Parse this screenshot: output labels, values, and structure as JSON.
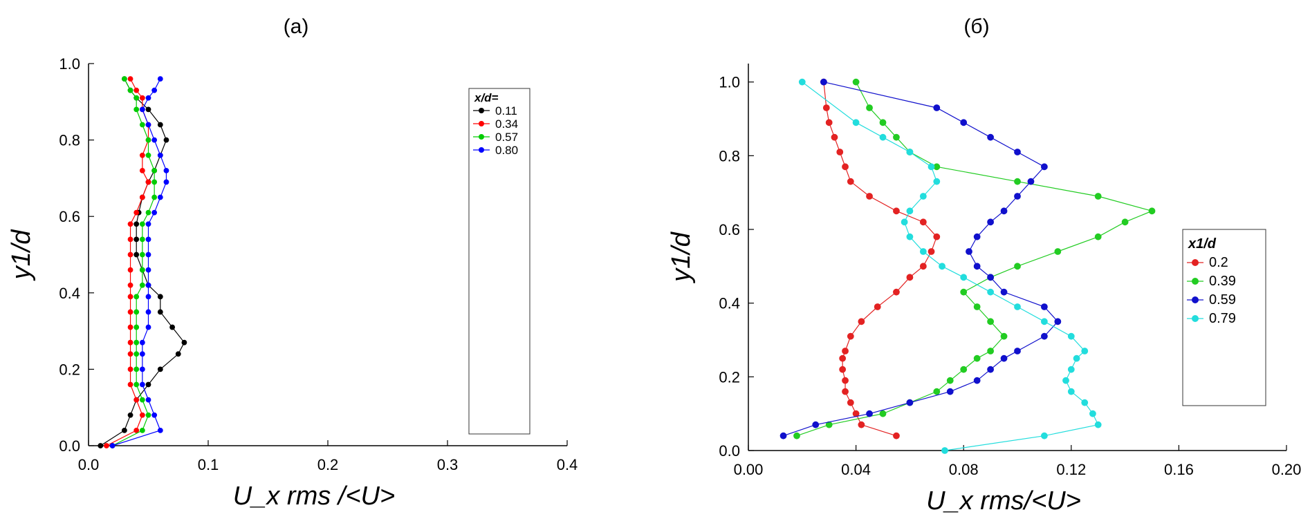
{
  "chart_data": [
    {
      "id": "a",
      "type": "line",
      "title": "(a)",
      "xlabel": "U_x rms /<U>",
      "ylabel": "y1/d",
      "xlim": [
        0.0,
        0.4
      ],
      "ylim": [
        0.0,
        1.0
      ],
      "xticks": [
        "0.0",
        "0.1",
        "0.2",
        "0.3",
        "0.4"
      ],
      "yticks": [
        "0.0",
        "0.2",
        "0.4",
        "0.6",
        "0.8",
        "1.0"
      ],
      "grid": false,
      "legend_title": "x/d=",
      "legend_position": "right",
      "series": [
        {
          "name": "0.11",
          "color": "#000000",
          "marker": "circle",
          "x": [
            0.01,
            0.03,
            0.035,
            0.04,
            0.05,
            0.06,
            0.075,
            0.08,
            0.07,
            0.06,
            0.06,
            0.05,
            0.045,
            0.04,
            0.04,
            0.04,
            0.042,
            0.045,
            0.05,
            0.055,
            0.06,
            0.065,
            0.06,
            0.05,
            0.04,
            0.035,
            0.03
          ],
          "y": [
            0.0,
            0.04,
            0.08,
            0.12,
            0.16,
            0.2,
            0.24,
            0.27,
            0.31,
            0.35,
            0.39,
            0.42,
            0.46,
            0.5,
            0.54,
            0.58,
            0.61,
            0.65,
            0.69,
            0.72,
            0.76,
            0.8,
            0.84,
            0.88,
            0.91,
            0.93,
            0.96
          ]
        },
        {
          "name": "0.34",
          "color": "#ff0000",
          "marker": "circle",
          "x": [
            0.015,
            0.04,
            0.045,
            0.04,
            0.035,
            0.035,
            0.035,
            0.035,
            0.035,
            0.035,
            0.035,
            0.035,
            0.035,
            0.035,
            0.035,
            0.035,
            0.04,
            0.045,
            0.05,
            0.045,
            0.045,
            0.05,
            0.05,
            0.045,
            0.045,
            0.04,
            0.035
          ],
          "y": [
            0.0,
            0.04,
            0.08,
            0.12,
            0.16,
            0.2,
            0.24,
            0.27,
            0.31,
            0.35,
            0.39,
            0.42,
            0.46,
            0.5,
            0.54,
            0.58,
            0.61,
            0.65,
            0.69,
            0.72,
            0.76,
            0.8,
            0.84,
            0.88,
            0.91,
            0.93,
            0.96
          ]
        },
        {
          "name": "0.57",
          "color": "#00cc00",
          "marker": "circle",
          "x": [
            0.02,
            0.045,
            0.05,
            0.045,
            0.04,
            0.04,
            0.04,
            0.04,
            0.04,
            0.04,
            0.04,
            0.045,
            0.045,
            0.045,
            0.045,
            0.045,
            0.05,
            0.055,
            0.055,
            0.055,
            0.05,
            0.05,
            0.045,
            0.04,
            0.04,
            0.035,
            0.03
          ],
          "y": [
            0.0,
            0.04,
            0.08,
            0.12,
            0.16,
            0.2,
            0.24,
            0.27,
            0.31,
            0.35,
            0.39,
            0.42,
            0.46,
            0.5,
            0.54,
            0.58,
            0.61,
            0.65,
            0.69,
            0.72,
            0.76,
            0.8,
            0.84,
            0.88,
            0.91,
            0.93,
            0.96
          ]
        },
        {
          "name": "0.80",
          "color": "#0000ff",
          "marker": "circle",
          "x": [
            0.02,
            0.06,
            0.055,
            0.05,
            0.045,
            0.045,
            0.045,
            0.045,
            0.05,
            0.05,
            0.05,
            0.05,
            0.05,
            0.05,
            0.05,
            0.05,
            0.055,
            0.06,
            0.065,
            0.065,
            0.06,
            0.055,
            0.05,
            0.045,
            0.05,
            0.055,
            0.06
          ],
          "y": [
            0.0,
            0.04,
            0.08,
            0.12,
            0.16,
            0.2,
            0.24,
            0.27,
            0.31,
            0.35,
            0.39,
            0.42,
            0.46,
            0.5,
            0.54,
            0.58,
            0.61,
            0.65,
            0.69,
            0.72,
            0.76,
            0.8,
            0.84,
            0.88,
            0.91,
            0.93,
            0.96
          ]
        }
      ]
    },
    {
      "id": "b",
      "type": "line",
      "title": "(б)",
      "xlabel": "U_x rms/<U>",
      "ylabel": "y1/d",
      "xlim": [
        0.0,
        0.2
      ],
      "ylim": [
        0.0,
        1.05
      ],
      "xticks": [
        "0.00",
        "0.04",
        "0.08",
        "0.12",
        "0.16",
        "0.20"
      ],
      "yticks": [
        "0.0",
        "0.2",
        "0.4",
        "0.6",
        "0.8",
        "1.0"
      ],
      "grid": false,
      "legend_title": "x1/d",
      "legend_position": "right",
      "series": [
        {
          "name": "0.2",
          "color": "#e32222",
          "marker": "circle",
          "x": [
            0.055,
            0.042,
            0.04,
            0.038,
            0.036,
            0.036,
            0.035,
            0.035,
            0.036,
            0.038,
            0.042,
            0.048,
            0.055,
            0.06,
            0.065,
            0.068,
            0.07,
            0.065,
            0.055,
            0.045,
            0.038,
            0.036,
            0.034,
            0.032,
            0.03,
            0.029,
            0.028
          ],
          "y": [
            0.04,
            0.07,
            0.1,
            0.13,
            0.16,
            0.19,
            0.22,
            0.25,
            0.27,
            0.31,
            0.35,
            0.39,
            0.43,
            0.47,
            0.5,
            0.54,
            0.58,
            0.62,
            0.65,
            0.69,
            0.73,
            0.77,
            0.81,
            0.85,
            0.89,
            0.93,
            1.0
          ]
        },
        {
          "name": "0.39",
          "color": "#22cc22",
          "marker": "circle",
          "x": [
            0.018,
            0.03,
            0.05,
            0.06,
            0.07,
            0.075,
            0.08,
            0.085,
            0.09,
            0.095,
            0.09,
            0.085,
            0.08,
            0.09,
            0.1,
            0.115,
            0.13,
            0.14,
            0.15,
            0.13,
            0.1,
            0.07,
            0.06,
            0.055,
            0.05,
            0.045,
            0.04
          ],
          "y": [
            0.04,
            0.07,
            0.1,
            0.13,
            0.16,
            0.19,
            0.22,
            0.25,
            0.27,
            0.31,
            0.35,
            0.39,
            0.43,
            0.47,
            0.5,
            0.54,
            0.58,
            0.62,
            0.65,
            0.69,
            0.73,
            0.77,
            0.81,
            0.85,
            0.89,
            0.93,
            1.0
          ]
        },
        {
          "name": "0.59",
          "color": "#1010cc",
          "marker": "circle",
          "x": [
            0.013,
            0.025,
            0.045,
            0.06,
            0.075,
            0.085,
            0.09,
            0.095,
            0.1,
            0.11,
            0.115,
            0.11,
            0.095,
            0.09,
            0.085,
            0.082,
            0.085,
            0.09,
            0.095,
            0.1,
            0.105,
            0.11,
            0.1,
            0.09,
            0.08,
            0.07,
            0.028
          ],
          "y": [
            0.04,
            0.07,
            0.1,
            0.13,
            0.16,
            0.19,
            0.22,
            0.25,
            0.27,
            0.31,
            0.35,
            0.39,
            0.43,
            0.47,
            0.5,
            0.54,
            0.58,
            0.62,
            0.65,
            0.69,
            0.73,
            0.77,
            0.81,
            0.85,
            0.89,
            0.93,
            1.0
          ]
        },
        {
          "name": "0.79",
          "color": "#22dddd",
          "marker": "circle",
          "x": [
            0.073,
            0.11,
            0.13,
            0.128,
            0.125,
            0.12,
            0.118,
            0.12,
            0.122,
            0.125,
            0.12,
            0.11,
            0.1,
            0.09,
            0.08,
            0.072,
            0.065,
            0.06,
            0.058,
            0.06,
            0.065,
            0.07,
            0.068,
            0.06,
            0.05,
            0.04,
            0.02
          ],
          "y": [
            0.0,
            0.04,
            0.07,
            0.1,
            0.13,
            0.16,
            0.19,
            0.22,
            0.25,
            0.27,
            0.31,
            0.35,
            0.39,
            0.43,
            0.47,
            0.5,
            0.54,
            0.58,
            0.62,
            0.65,
            0.69,
            0.73,
            0.77,
            0.81,
            0.85,
            0.89,
            1.0
          ]
        }
      ]
    }
  ]
}
